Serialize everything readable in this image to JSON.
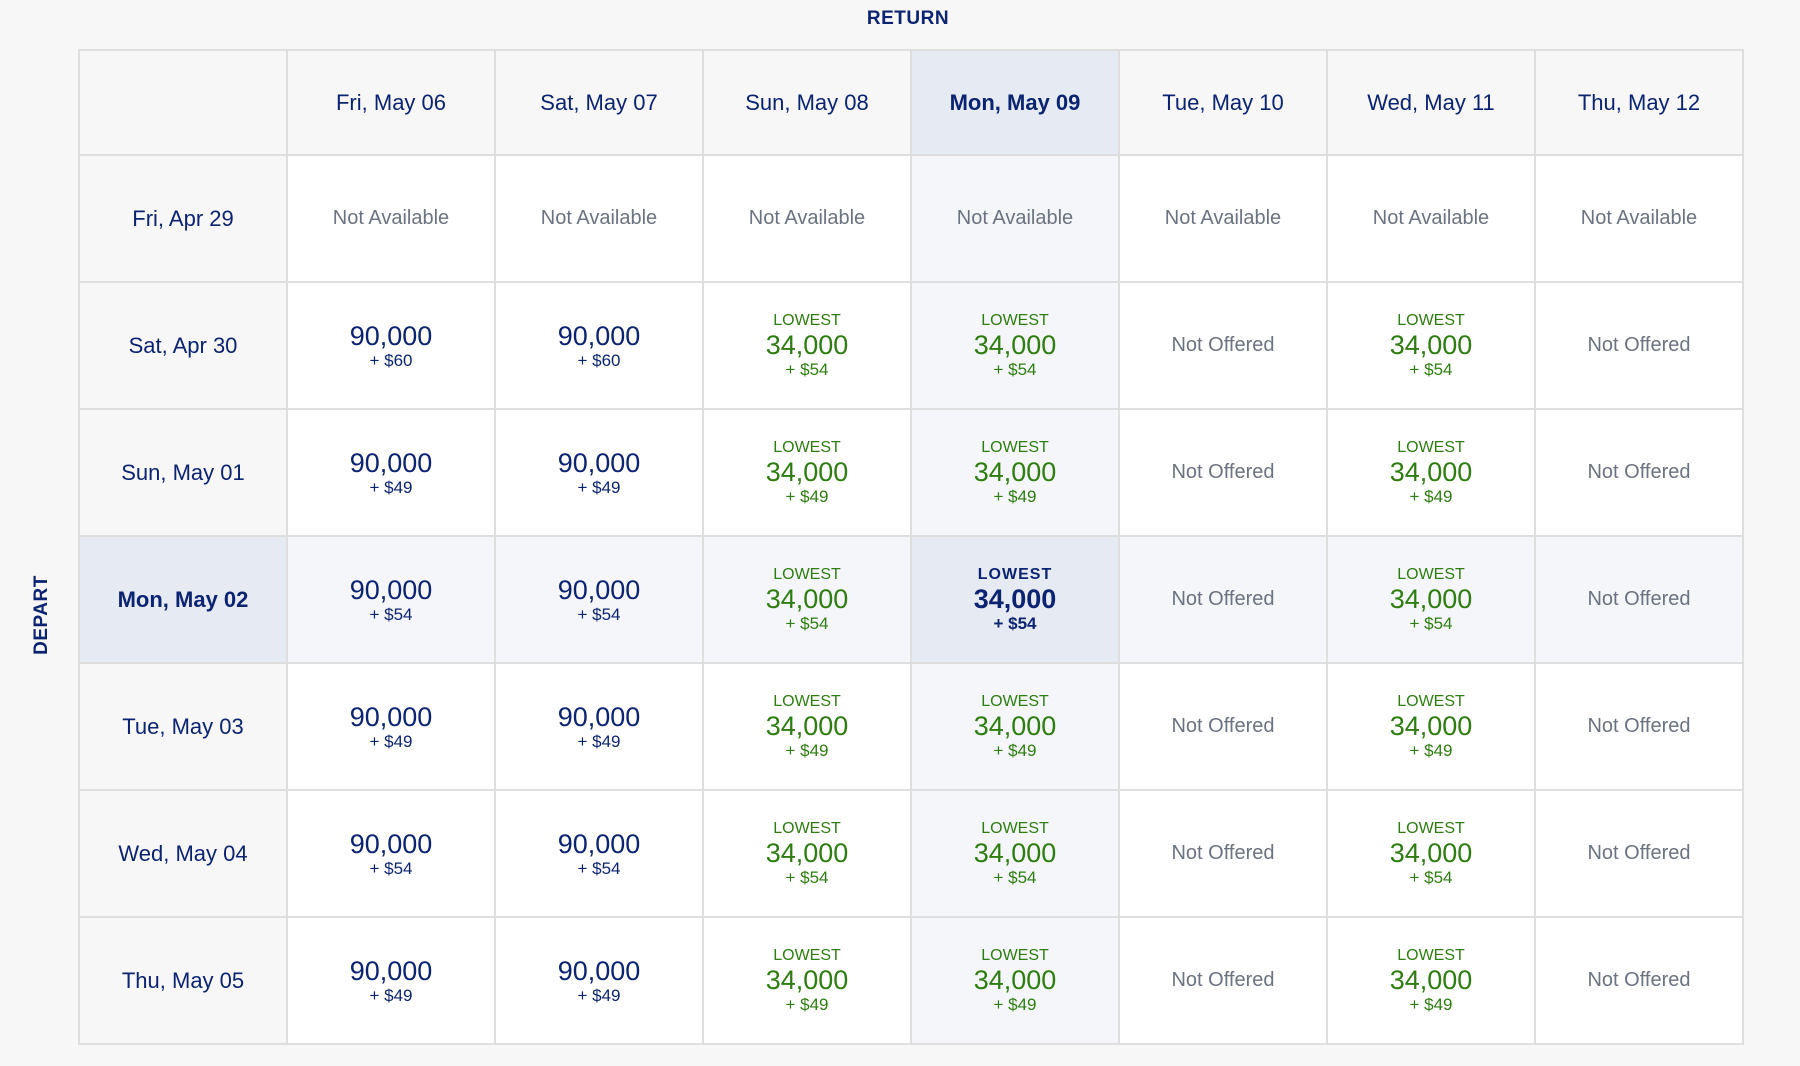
{
  "return_label": "RETURN",
  "depart_label": "DEPART",
  "selected_return_index": 3,
  "selected_depart_index": 3,
  "colors": {
    "navy": "#0c2372",
    "green": "#2e7d10",
    "gray": "#6b7280",
    "highlight": "#e6ebf3"
  },
  "columns": [
    "Fri, May 06",
    "Sat, May 07",
    "Sun, May 08",
    "Mon, May 09",
    "Tue, May 10",
    "Wed, May 11",
    "Thu, May 12"
  ],
  "rows": [
    {
      "label": "Fri, Apr 29",
      "cells": [
        {
          "text": "Not Available"
        },
        {
          "text": "Not Available"
        },
        {
          "text": "Not Available"
        },
        {
          "text": "Not Available"
        },
        {
          "text": "Not Available"
        },
        {
          "text": "Not Available"
        },
        {
          "text": "Not Available"
        }
      ]
    },
    {
      "label": "Sat, Apr 30",
      "cells": [
        {
          "miles": "90,000",
          "fee": "+ $60"
        },
        {
          "miles": "90,000",
          "fee": "+ $60"
        },
        {
          "tag": "LOWEST",
          "miles": "34,000",
          "fee": "+ $54"
        },
        {
          "tag": "LOWEST",
          "miles": "34,000",
          "fee": "+ $54"
        },
        {
          "text": "Not Offered"
        },
        {
          "tag": "LOWEST",
          "miles": "34,000",
          "fee": "+ $54"
        },
        {
          "text": "Not Offered"
        }
      ]
    },
    {
      "label": "Sun, May 01",
      "cells": [
        {
          "miles": "90,000",
          "fee": "+ $49"
        },
        {
          "miles": "90,000",
          "fee": "+ $49"
        },
        {
          "tag": "LOWEST",
          "miles": "34,000",
          "fee": "+ $49"
        },
        {
          "tag": "LOWEST",
          "miles": "34,000",
          "fee": "+ $49"
        },
        {
          "text": "Not Offered"
        },
        {
          "tag": "LOWEST",
          "miles": "34,000",
          "fee": "+ $49"
        },
        {
          "text": "Not Offered"
        }
      ]
    },
    {
      "label": "Mon, May 02",
      "cells": [
        {
          "miles": "90,000",
          "fee": "+ $54"
        },
        {
          "miles": "90,000",
          "fee": "+ $54"
        },
        {
          "tag": "LOWEST",
          "miles": "34,000",
          "fee": "+ $54"
        },
        {
          "tag": "LOWEST",
          "miles": "34,000",
          "fee": "+ $54"
        },
        {
          "text": "Not Offered"
        },
        {
          "tag": "LOWEST",
          "miles": "34,000",
          "fee": "+ $54"
        },
        {
          "text": "Not Offered"
        }
      ]
    },
    {
      "label": "Tue, May 03",
      "cells": [
        {
          "miles": "90,000",
          "fee": "+ $49"
        },
        {
          "miles": "90,000",
          "fee": "+ $49"
        },
        {
          "tag": "LOWEST",
          "miles": "34,000",
          "fee": "+ $49"
        },
        {
          "tag": "LOWEST",
          "miles": "34,000",
          "fee": "+ $49"
        },
        {
          "text": "Not Offered"
        },
        {
          "tag": "LOWEST",
          "miles": "34,000",
          "fee": "+ $49"
        },
        {
          "text": "Not Offered"
        }
      ]
    },
    {
      "label": "Wed, May 04",
      "cells": [
        {
          "miles": "90,000",
          "fee": "+ $54"
        },
        {
          "miles": "90,000",
          "fee": "+ $54"
        },
        {
          "tag": "LOWEST",
          "miles": "34,000",
          "fee": "+ $54"
        },
        {
          "tag": "LOWEST",
          "miles": "34,000",
          "fee": "+ $54"
        },
        {
          "text": "Not Offered"
        },
        {
          "tag": "LOWEST",
          "miles": "34,000",
          "fee": "+ $54"
        },
        {
          "text": "Not Offered"
        }
      ]
    },
    {
      "label": "Thu, May 05",
      "cells": [
        {
          "miles": "90,000",
          "fee": "+ $49"
        },
        {
          "miles": "90,000",
          "fee": "+ $49"
        },
        {
          "tag": "LOWEST",
          "miles": "34,000",
          "fee": "+ $49"
        },
        {
          "tag": "LOWEST",
          "miles": "34,000",
          "fee": "+ $49"
        },
        {
          "text": "Not Offered"
        },
        {
          "tag": "LOWEST",
          "miles": "34,000",
          "fee": "+ $49"
        },
        {
          "text": "Not Offered"
        }
      ]
    }
  ]
}
